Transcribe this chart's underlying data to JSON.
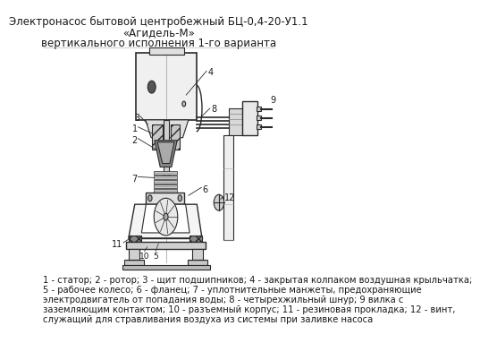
{
  "title_line1": "Электронасос бытовой центробежный БЦ-0,4-20-У1.1",
  "title_line2": "«Агидель-М»",
  "title_line3": "вертикального исполнения 1-го варианта",
  "caption_line1": "1 - статор; 2 - ротор; 3 - щит подшипников; 4 - закрытая колпаком воздушная крыльчатка;",
  "caption_line2": "5 - рабочее колесо; 6 - фланец; 7 - уплотнительные манжеты, предохраняющие",
  "caption_line3": "электродвигатель от попадания воды; 8 - четырехжильный шнур; 9 вилка с",
  "caption_line4": "заземляющим контактом; 10 - разъемный корпус; 11 - резиновая прокладка; 12 - винт,",
  "caption_line5": "служащий для стравливания воздуха из системы при заливке насоса",
  "bg_color": "#ffffff",
  "line_color": "#2a2a2a",
  "title_fontsize": 8.5,
  "caption_fontsize": 7.2,
  "fig_width": 4.3,
  "fig_height": 3.85
}
